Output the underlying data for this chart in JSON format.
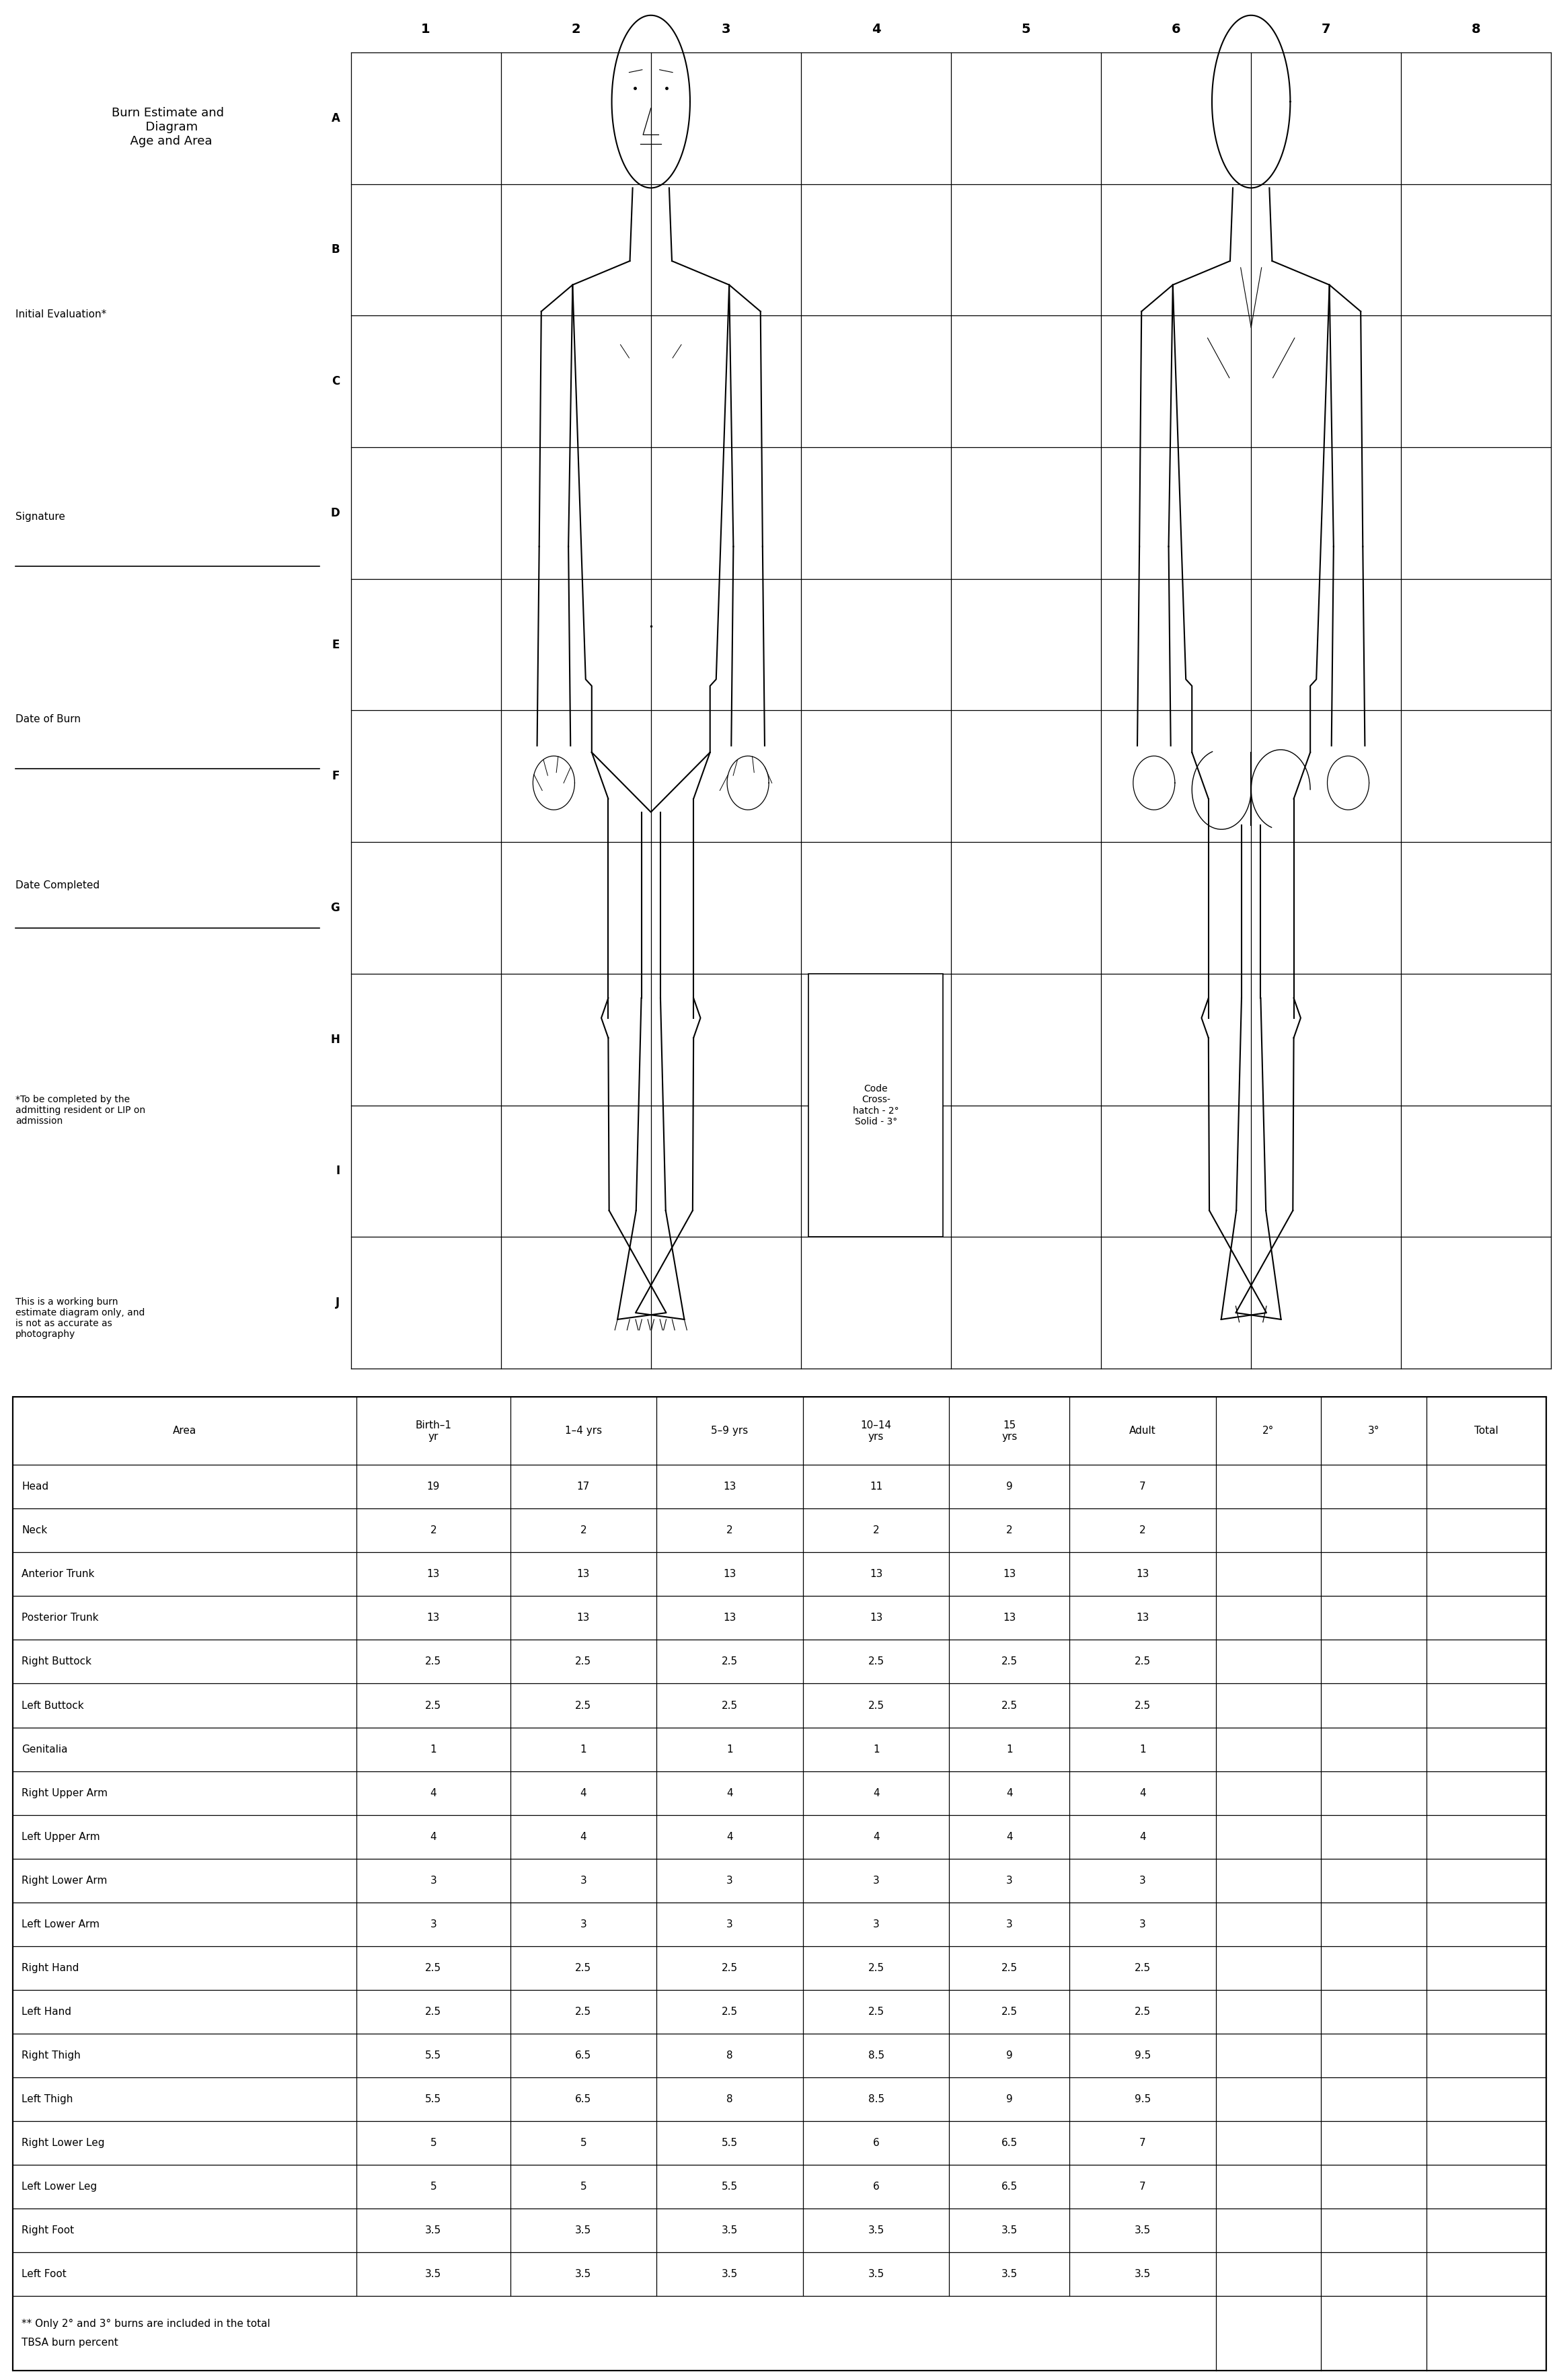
{
  "rows": [
    [
      "Head",
      "19",
      "17",
      "13",
      "11",
      "9",
      "7",
      "",
      "",
      ""
    ],
    [
      "Neck",
      "2",
      "2",
      "2",
      "2",
      "2",
      "2",
      "",
      "",
      ""
    ],
    [
      "Anterior Trunk",
      "13",
      "13",
      "13",
      "13",
      "13",
      "13",
      "",
      "",
      ""
    ],
    [
      "Posterior Trunk",
      "13",
      "13",
      "13",
      "13",
      "13",
      "13",
      "",
      "",
      ""
    ],
    [
      "Right Buttock",
      "2.5",
      "2.5",
      "2.5",
      "2.5",
      "2.5",
      "2.5",
      "",
      "",
      ""
    ],
    [
      "Left Buttock",
      "2.5",
      "2.5",
      "2.5",
      "2.5",
      "2.5",
      "2.5",
      "",
      "",
      ""
    ],
    [
      "Genitalia",
      "1",
      "1",
      "1",
      "1",
      "1",
      "1",
      "",
      "",
      ""
    ],
    [
      "Right Upper Arm",
      "4",
      "4",
      "4",
      "4",
      "4",
      "4",
      "",
      "",
      ""
    ],
    [
      "Left Upper Arm",
      "4",
      "4",
      "4",
      "4",
      "4",
      "4",
      "",
      "",
      ""
    ],
    [
      "Right Lower Arm",
      "3",
      "3",
      "3",
      "3",
      "3",
      "3",
      "",
      "",
      ""
    ],
    [
      "Left Lower Arm",
      "3",
      "3",
      "3",
      "3",
      "3",
      "3",
      "",
      "",
      ""
    ],
    [
      "Right Hand",
      "2.5",
      "2.5",
      "2.5",
      "2.5",
      "2.5",
      "2.5",
      "",
      "",
      ""
    ],
    [
      "Left Hand",
      "2.5",
      "2.5",
      "2.5",
      "2.5",
      "2.5",
      "2.5",
      "",
      "",
      ""
    ],
    [
      "Right Thigh",
      "5.5",
      "6.5",
      "8",
      "8.5",
      "9",
      "9.5",
      "",
      "",
      ""
    ],
    [
      "Left Thigh",
      "5.5",
      "6.5",
      "8",
      "8.5",
      "9",
      "9.5",
      "",
      "",
      ""
    ],
    [
      "Right Lower Leg",
      "5",
      "5",
      "5.5",
      "6",
      "6.5",
      "7",
      "",
      "",
      ""
    ],
    [
      "Left Lower Leg",
      "5",
      "5",
      "5.5",
      "6",
      "6.5",
      "7",
      "",
      "",
      ""
    ],
    [
      "Right Foot",
      "3.5",
      "3.5",
      "3.5",
      "3.5",
      "3.5",
      "3.5",
      "",
      "",
      ""
    ],
    [
      "Left Foot",
      "3.5",
      "3.5",
      "3.5",
      "3.5",
      "3.5",
      "3.5",
      "",
      "",
      ""
    ]
  ],
  "headers": [
    "Area",
    "Birth–1\nyr",
    "1–4 yrs",
    "5–9 yrs",
    "10–14\nyrs",
    "15\nyrs",
    "Adult",
    "2°",
    "3°",
    "Total"
  ],
  "footnote1": "** Only 2° and 3° burns are included in the total",
  "footnote2": "TBSA burn percent",
  "row_labels": [
    "A",
    "B",
    "C",
    "D",
    "E",
    "F",
    "G",
    "H",
    "I",
    "J"
  ],
  "col_numbers": [
    "1",
    "2",
    "3",
    "4",
    "5",
    "6",
    "7",
    "8"
  ],
  "code_box": "Code\nCross-\nhatch - 2°\nSolid - 3°",
  "left_texts": [
    [
      "Burn Estimate and\n  Diagram\n  Age and Area",
      0.97
    ],
    [
      "Initial Evaluation*",
      0.86
    ],
    [
      "Signature",
      0.78
    ],
    [
      "Date of Burn",
      0.7
    ],
    [
      "Date Completed",
      0.63
    ],
    [
      "*To be completed by the\nadmitting resident or LIP on\nadmission",
      0.53
    ],
    [
      "This is a working burn\nestimate diagram only, and\nis not as accurate as\nphotography",
      0.43
    ]
  ],
  "underlines": [
    0.755,
    0.675,
    0.61
  ],
  "bg_color": "#ffffff"
}
